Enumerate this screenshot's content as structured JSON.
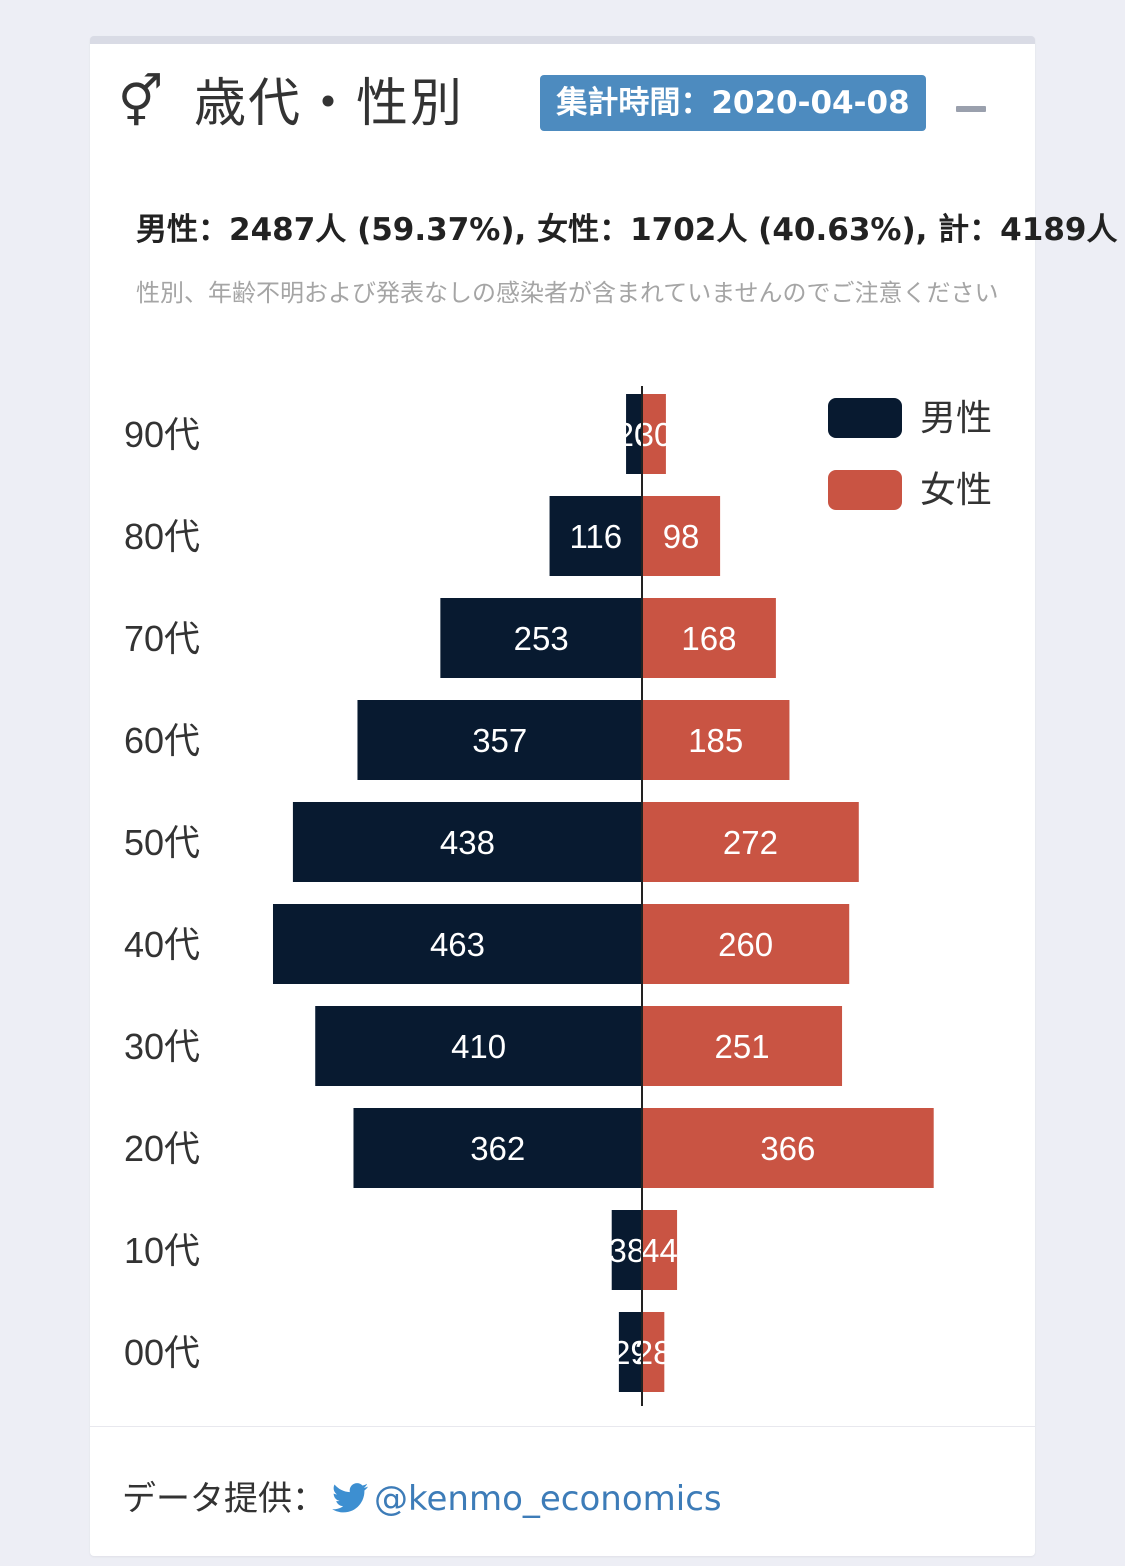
{
  "header": {
    "icon": "gender-icon",
    "icon_glyph": "⚥",
    "title": "歳代・性別",
    "badge_label": "集計時間：",
    "badge_date": "2020-04-08"
  },
  "summary": "男性：2487人 (59.37%), 女性：1702人 (40.63%), 計：4189人",
  "note": "性別、年齢不明および発表なしの感染者が含まれていませんのでご注意ください",
  "footer": {
    "label": "データ提供：",
    "icon": "twitter-icon",
    "link": "@kenmo_economics"
  },
  "colors": {
    "male": "#081a30",
    "female": "#c95443",
    "accent": "#4d8bbf"
  },
  "chart_data": {
    "type": "bar",
    "orientation": "horizontal-diverging",
    "categories": [
      "90代",
      "80代",
      "70代",
      "60代",
      "50代",
      "40代",
      "30代",
      "20代",
      "10代",
      "00代"
    ],
    "series": [
      {
        "name": "男性",
        "values": [
          20,
          116,
          253,
          357,
          438,
          463,
          410,
          362,
          38,
          29
        ]
      },
      {
        "name": "女性",
        "values": [
          30,
          98,
          168,
          185,
          272,
          260,
          251,
          366,
          44,
          28
        ]
      }
    ],
    "legend": "top-right",
    "grid": false
  }
}
